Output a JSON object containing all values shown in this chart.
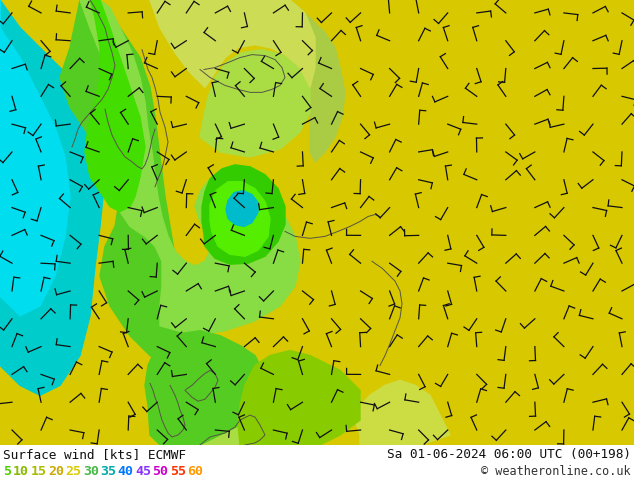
{
  "title_left": "Surface wind [kts] ECMWF",
  "title_right": "Sa 01-06-2024 06:00 UTC (00+198)",
  "copyright": "© weatheronline.co.uk",
  "legend_values": [
    5,
    10,
    15,
    20,
    25,
    30,
    35,
    40,
    45,
    50,
    55,
    60
  ],
  "legend_colors": [
    "#55cc00",
    "#88bb00",
    "#aabb00",
    "#ccaa00",
    "#ddcc00",
    "#44bb44",
    "#00aaaa",
    "#0077ff",
    "#8833ff",
    "#cc00cc",
    "#ff3300",
    "#ff9900"
  ],
  "bg_color": "#ffffff",
  "bottom_bar_color": "#ffffff",
  "map_bg": "#e8d000",
  "colors": {
    "cyan_bright": "#00dddd",
    "cyan_mid": "#00cccc",
    "cyan_dark": "#00aaaa",
    "teal": "#00bbaa",
    "green_bright": "#44ee00",
    "green_mid": "#33cc00",
    "green_dark": "#22aa00",
    "green_pale": "#aadd44",
    "yellow_green": "#ccdd44",
    "yellow": "#ddcc00",
    "yellow_gold": "#e8d000",
    "yellow_pale": "#eedd44"
  },
  "figsize": [
    6.34,
    4.9
  ],
  "dpi": 100
}
